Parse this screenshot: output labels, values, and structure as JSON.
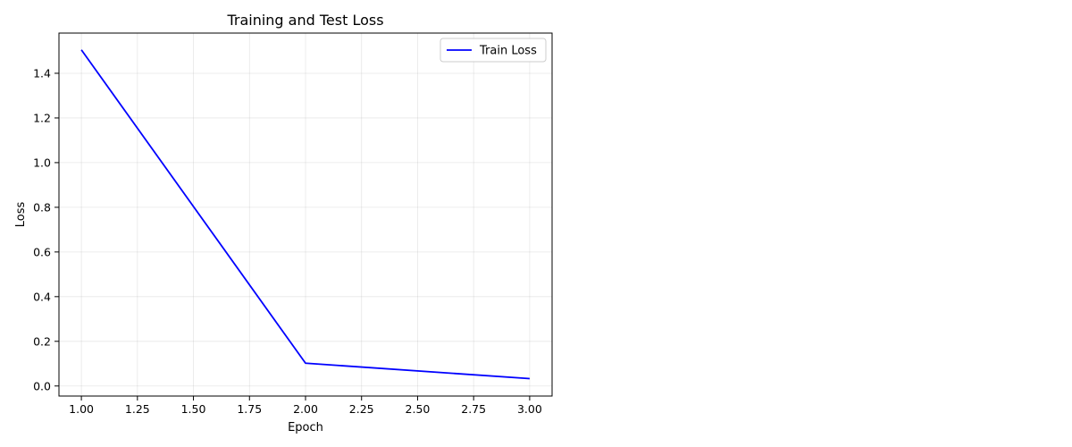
{
  "chart_data": {
    "type": "line",
    "title": "Training and Test Loss",
    "xlabel": "Epoch",
    "ylabel": "Loss",
    "xlim": [
      0.9,
      3.1
    ],
    "ylim": [
      -0.045,
      1.58
    ],
    "xticks": [
      1.0,
      1.25,
      1.5,
      1.75,
      2.0,
      2.25,
      2.5,
      2.75,
      3.0
    ],
    "xtick_labels": [
      "1.00",
      "1.25",
      "1.50",
      "1.75",
      "2.00",
      "2.25",
      "2.50",
      "2.75",
      "3.00"
    ],
    "yticks": [
      0.0,
      0.2,
      0.4,
      0.6,
      0.8,
      1.0,
      1.2,
      1.4
    ],
    "ytick_labels": [
      "0.0",
      "0.2",
      "0.4",
      "0.6",
      "0.8",
      "1.0",
      "1.2",
      "1.4"
    ],
    "grid": true,
    "legend_position": "top-right",
    "series": [
      {
        "name": "Train Loss",
        "color": "#0000ff",
        "x": [
          1,
          2,
          3
        ],
        "y": [
          1.505,
          0.102,
          0.033
        ]
      }
    ]
  }
}
